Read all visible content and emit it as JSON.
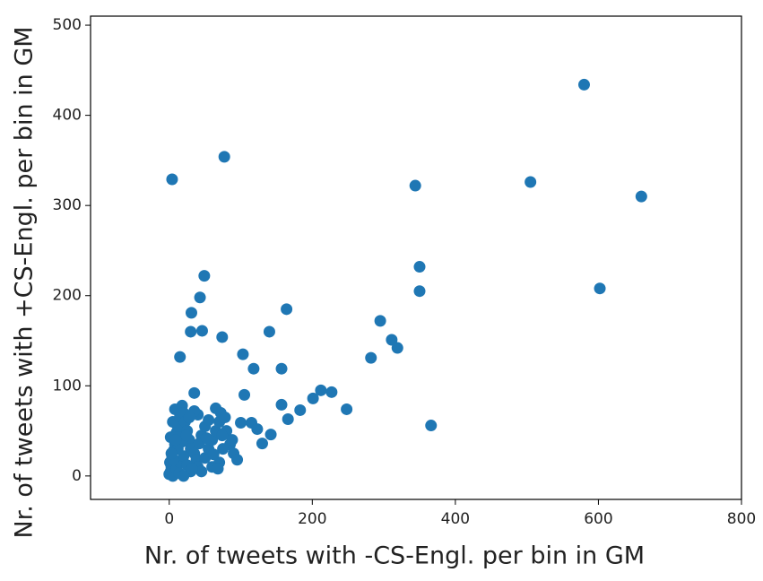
{
  "chart_data": {
    "type": "scatter",
    "xlabel": "Nr. of tweets with -CS-Engl. per bin in GM",
    "ylabel": "Nr. of tweets with +CS-Engl. per bin in GM",
    "series": [
      {
        "color": "#1f77b4",
        "x": [
          4,
          77,
          580,
          505,
          660,
          344,
          350,
          350,
          602,
          49,
          43,
          31,
          164,
          30,
          46,
          74,
          140,
          295,
          311,
          319,
          282,
          15,
          103,
          118,
          157,
          35,
          105,
          157,
          166,
          183,
          201,
          212,
          227,
          248,
          366,
          142,
          130,
          100,
          115,
          123,
          0,
          2,
          3,
          5,
          1,
          4,
          6,
          8,
          2,
          10,
          12,
          5,
          15,
          8,
          18,
          20,
          22,
          25,
          28,
          30,
          35,
          38,
          40,
          45,
          10,
          15,
          20,
          25,
          30,
          50,
          55,
          60,
          65,
          70,
          72,
          78,
          80,
          85,
          90,
          95,
          60,
          70,
          75,
          45,
          50,
          55,
          40,
          35,
          65,
          28,
          12,
          18,
          24,
          6,
          14,
          20,
          32,
          42,
          52,
          62,
          68,
          88,
          74,
          3,
          9
        ],
        "y": [
          329,
          354,
          434,
          326,
          310,
          322,
          232,
          205,
          208,
          222,
          198,
          181,
          185,
          160,
          161,
          154,
          160,
          172,
          151,
          142,
          131,
          132,
          135,
          119,
          119,
          92,
          90,
          79,
          63,
          73,
          86,
          95,
          93,
          74,
          56,
          46,
          36,
          59,
          59,
          52,
          2,
          5,
          10,
          0,
          15,
          20,
          28,
          35,
          43,
          48,
          55,
          60,
          66,
          74,
          78,
          70,
          60,
          50,
          40,
          30,
          25,
          18,
          10,
          5,
          8,
          15,
          22,
          12,
          5,
          20,
          30,
          40,
          50,
          60,
          70,
          65,
          50,
          35,
          25,
          18,
          10,
          15,
          30,
          45,
          55,
          62,
          68,
          72,
          75,
          65,
          30,
          38,
          45,
          18,
          3,
          0,
          8,
          36,
          42,
          24,
          8,
          40,
          45,
          25,
          40
        ]
      }
    ],
    "xlim": [
      -110,
      800
    ],
    "ylim": [
      -26,
      510
    ],
    "xticks": [
      0,
      200,
      400,
      600,
      800
    ],
    "yticks": [
      0,
      100,
      200,
      300,
      400,
      500
    ]
  }
}
